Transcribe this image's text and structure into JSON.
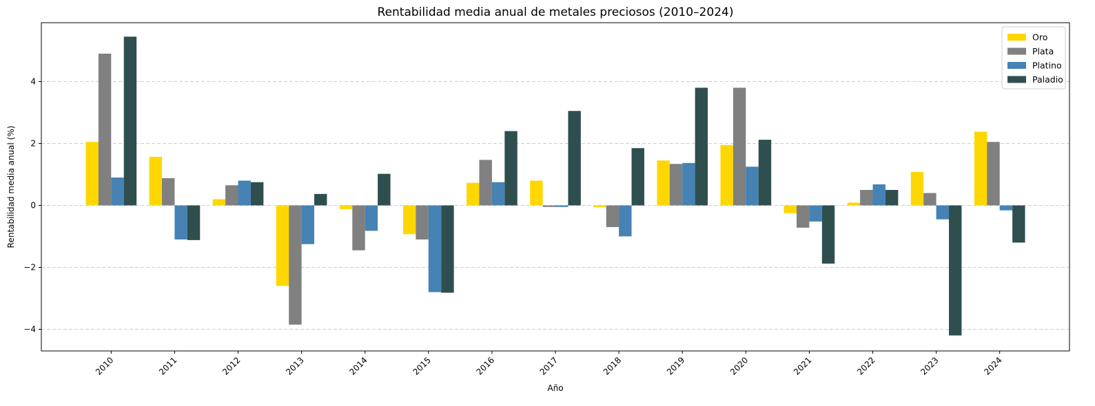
{
  "chart_data": {
    "type": "bar",
    "title": "Rentabilidad media anual de metales preciosos (2010–2024)",
    "xlabel": "Año",
    "ylabel": "Rentabilidad media anual (%)",
    "categories": [
      "2010",
      "2011",
      "2012",
      "2013",
      "2014",
      "2015",
      "2016",
      "2017",
      "2018",
      "2019",
      "2020",
      "2021",
      "2022",
      "2023",
      "2024"
    ],
    "ylim": [
      -4.7,
      5.9
    ],
    "yticks": [
      -4,
      -2,
      0,
      2,
      4
    ],
    "ytick_labels": [
      "−4",
      "−2",
      "0",
      "2",
      "4"
    ],
    "grid": "y-dashed",
    "legend_position": "top-right",
    "series": [
      {
        "name": "Oro",
        "color": "#FFD700",
        "values": [
          2.05,
          1.57,
          0.2,
          -2.6,
          -0.12,
          -0.93,
          0.73,
          0.8,
          -0.06,
          1.45,
          1.95,
          -0.25,
          0.09,
          1.08,
          2.38
        ]
      },
      {
        "name": "Plata",
        "color": "#808080",
        "values": [
          4.9,
          0.88,
          0.65,
          -3.85,
          -1.45,
          -1.1,
          1.47,
          -0.05,
          -0.7,
          1.34,
          3.8,
          -0.72,
          0.5,
          0.4,
          2.05
        ]
      },
      {
        "name": "Platino",
        "color": "#4682B4",
        "values": [
          0.9,
          -1.1,
          0.8,
          -1.25,
          -0.82,
          -2.8,
          0.75,
          -0.05,
          -1.0,
          1.37,
          1.25,
          -0.52,
          0.68,
          -0.45,
          -0.16
        ]
      },
      {
        "name": "Paladio",
        "color": "#2F4F4F",
        "values": [
          5.45,
          -1.12,
          0.75,
          0.37,
          1.02,
          -2.82,
          2.4,
          3.05,
          1.85,
          3.8,
          2.12,
          -1.88,
          0.5,
          -4.2,
          -1.2
        ]
      }
    ]
  }
}
